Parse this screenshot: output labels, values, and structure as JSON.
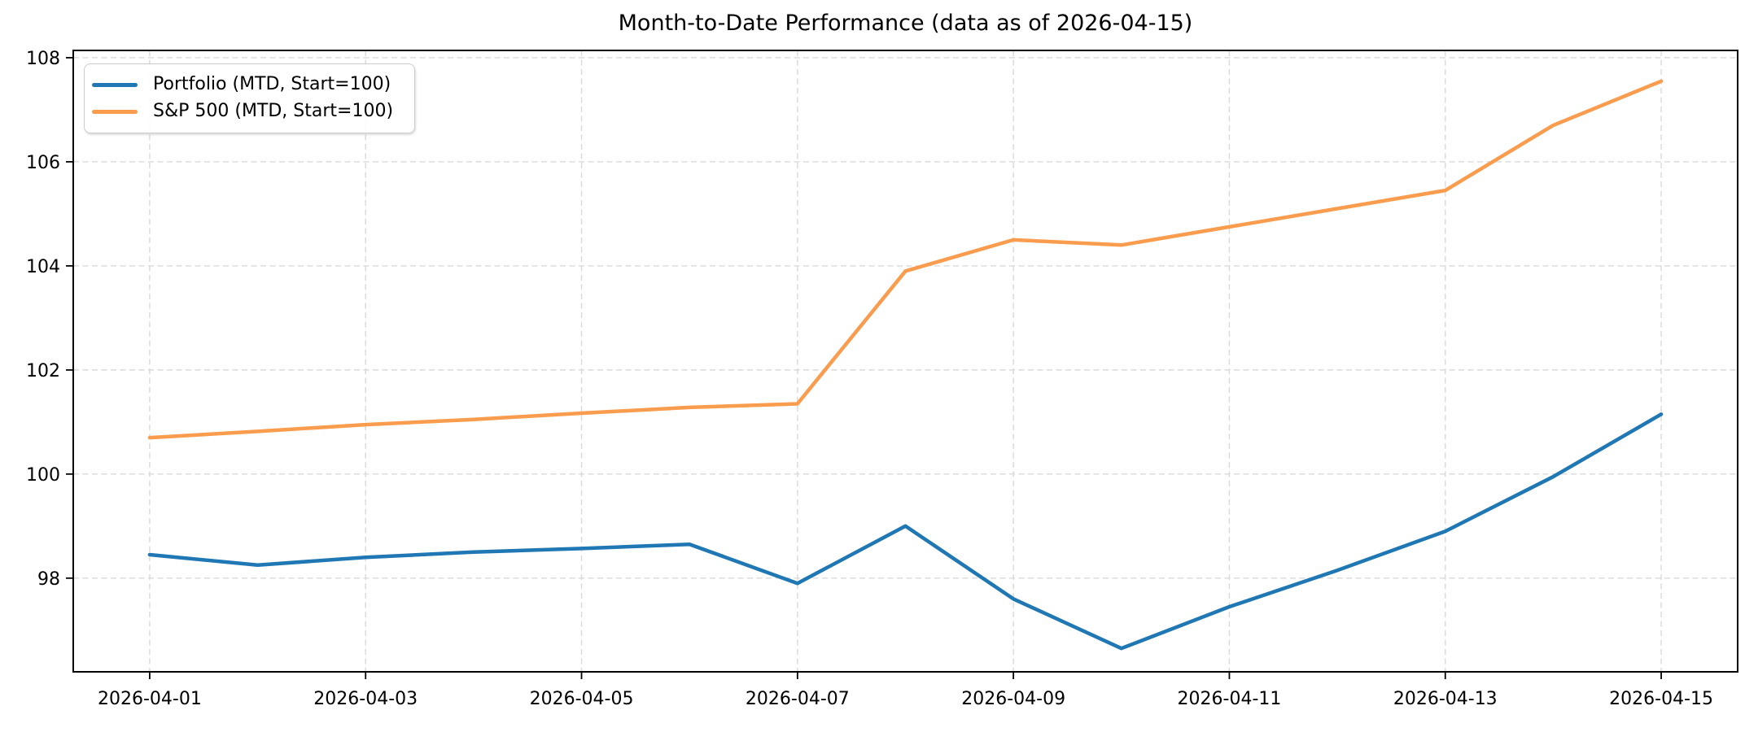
{
  "chart_data": {
    "type": "line",
    "title": "Month-to-Date Performance (data as of 2026-04-15)",
    "xlabel": "",
    "ylabel": "",
    "x": [
      "2026-04-01",
      "2026-04-02",
      "2026-04-03",
      "2026-04-04",
      "2026-04-05",
      "2026-04-06",
      "2026-04-07",
      "2026-04-08",
      "2026-04-09",
      "2026-04-10",
      "2026-04-11",
      "2026-04-12",
      "2026-04-13",
      "2026-04-14",
      "2026-04-15"
    ],
    "series": [
      {
        "name": "Portfolio (MTD, Start=100)",
        "color": "#1f77b4",
        "values": [
          98.45,
          98.25,
          98.4,
          98.5,
          98.57,
          98.65,
          97.9,
          99.0,
          97.6,
          96.65,
          97.45,
          98.15,
          98.9,
          99.95,
          101.15
        ]
      },
      {
        "name": "S&P 500 (MTD, Start=100)",
        "color": "#f99c4e",
        "values": [
          100.7,
          100.82,
          100.95,
          101.05,
          101.17,
          101.28,
          101.35,
          103.9,
          104.5,
          104.4,
          104.75,
          105.1,
          105.45,
          106.7,
          107.55
        ]
      }
    ],
    "xtick_labels": [
      "2026-04-01",
      "2026-04-03",
      "2026-04-05",
      "2026-04-07",
      "2026-04-09",
      "2026-04-11",
      "2026-04-13",
      "2026-04-15"
    ],
    "xtick_every": 2,
    "yticks": [
      98,
      100,
      102,
      104,
      106,
      108
    ],
    "ylim": [
      96.2,
      108.14
    ],
    "x_margin_days": 0.708,
    "grid": true,
    "grid_style": "dashed",
    "grid_color": "#d9d9d9",
    "axis_color": "#000000",
    "legend_position": "upper-left"
  }
}
